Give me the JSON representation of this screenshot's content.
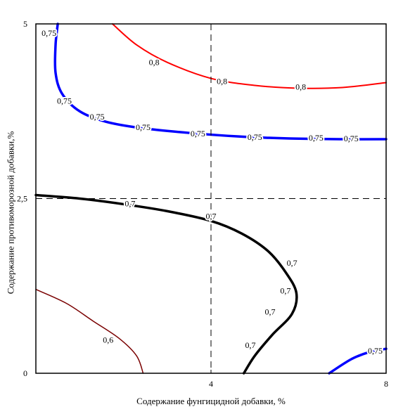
{
  "chart_data": {
    "type": "contour",
    "title": "",
    "xlabel": "Содержание фунгицидной добавки, %",
    "ylabel": "Содержание противоморозной добавки,%",
    "xlim": [
      0,
      8
    ],
    "ylim": [
      0,
      5
    ],
    "x_ticks": [
      {
        "value": 4,
        "label": "4"
      },
      {
        "value": 8,
        "label": "8"
      }
    ],
    "y_ticks": [
      {
        "value": 0,
        "label": "0"
      },
      {
        "value": 2.5,
        "label": "2,5"
      },
      {
        "value": 5,
        "label": "5"
      }
    ],
    "reference_lines": {
      "x": [
        4
      ],
      "y": [
        2.5
      ]
    },
    "grid": false,
    "colors": {
      "level_0_6": "#7a0000",
      "level_0_7": "#000000",
      "level_0_75": "#0000ff",
      "level_0_8": "#ff0000",
      "reference": "#000000"
    },
    "contours": [
      {
        "level": "0,6",
        "color": "#7a0000",
        "points": [
          [
            0,
            1.2
          ],
          [
            0.7,
            1.0
          ],
          [
            1.3,
            0.75
          ],
          [
            1.9,
            0.5
          ],
          [
            2.3,
            0.25
          ],
          [
            2.45,
            0
          ]
        ],
        "labels": [
          {
            "text": "0,6",
            "at": [
              1.65,
              0.48
            ]
          }
        ]
      },
      {
        "level": "0,7",
        "color": "#000000",
        "points": [
          [
            0,
            2.55
          ],
          [
            1.0,
            2.5
          ],
          [
            2.0,
            2.42
          ],
          [
            3.0,
            2.32
          ],
          [
            4.0,
            2.18
          ],
          [
            4.7,
            2.0
          ],
          [
            5.3,
            1.75
          ],
          [
            5.7,
            1.45
          ],
          [
            5.95,
            1.15
          ],
          [
            5.85,
            0.85
          ],
          [
            5.4,
            0.55
          ],
          [
            5.0,
            0.25
          ],
          [
            4.75,
            0
          ]
        ],
        "labels": [
          {
            "text": "0,7",
            "at": [
              2.15,
              2.43
            ]
          },
          {
            "text": "0,7",
            "at": [
              4.0,
              2.25
            ]
          },
          {
            "text": "0,7",
            "at": [
              5.85,
              1.58
            ]
          },
          {
            "text": "0,7",
            "at": [
              5.7,
              1.18
            ]
          },
          {
            "text": "0,7",
            "at": [
              5.35,
              0.88
            ]
          },
          {
            "text": "0,7",
            "at": [
              4.9,
              0.4
            ]
          }
        ]
      },
      {
        "level": "0,75",
        "color": "#0000ff",
        "points": [
          [
            0.5,
            5
          ],
          [
            0.45,
            4.7
          ],
          [
            0.45,
            4.3
          ],
          [
            0.6,
            4.0
          ],
          [
            1.0,
            3.75
          ],
          [
            1.6,
            3.6
          ],
          [
            2.4,
            3.51
          ],
          [
            3.5,
            3.44
          ],
          [
            4.6,
            3.39
          ],
          [
            5.8,
            3.36
          ],
          [
            7.0,
            3.35
          ],
          [
            8,
            3.35
          ]
        ],
        "labels": [
          {
            "text": "0,75",
            "at": [
              0.3,
              4.87
            ]
          },
          {
            "text": "0,75",
            "at": [
              0.65,
              3.9
            ]
          },
          {
            "text": "0,75",
            "at": [
              1.4,
              3.67
            ]
          },
          {
            "text": "0,75",
            "at": [
              2.45,
              3.52
            ]
          },
          {
            "text": "0,75",
            "at": [
              3.7,
              3.43
            ]
          },
          {
            "text": "0,75",
            "at": [
              5.0,
              3.38
            ]
          },
          {
            "text": "0,75",
            "at": [
              6.4,
              3.37
            ]
          },
          {
            "text": "0,75",
            "at": [
              7.2,
              3.36
            ]
          }
        ]
      },
      {
        "level": "0,75",
        "color": "#0000ff",
        "points": [
          [
            6.7,
            0
          ],
          [
            7.2,
            0.2
          ],
          [
            7.6,
            0.3
          ],
          [
            8,
            0.35
          ]
        ],
        "labels": [
          {
            "text": "0,75",
            "at": [
              7.75,
              0.32
            ]
          }
        ]
      },
      {
        "level": "0,8",
        "color": "#ff0000",
        "points": [
          [
            1.75,
            5
          ],
          [
            2.3,
            4.7
          ],
          [
            3.0,
            4.45
          ],
          [
            4.0,
            4.22
          ],
          [
            5.0,
            4.12
          ],
          [
            6.0,
            4.08
          ],
          [
            7.0,
            4.09
          ],
          [
            8,
            4.16
          ]
        ],
        "labels": [
          {
            "text": "0,8",
            "at": [
              2.7,
              4.45
            ]
          },
          {
            "text": "0,8",
            "at": [
              4.25,
              4.18
            ]
          },
          {
            "text": "0,8",
            "at": [
              6.05,
              4.1
            ]
          }
        ]
      }
    ]
  }
}
